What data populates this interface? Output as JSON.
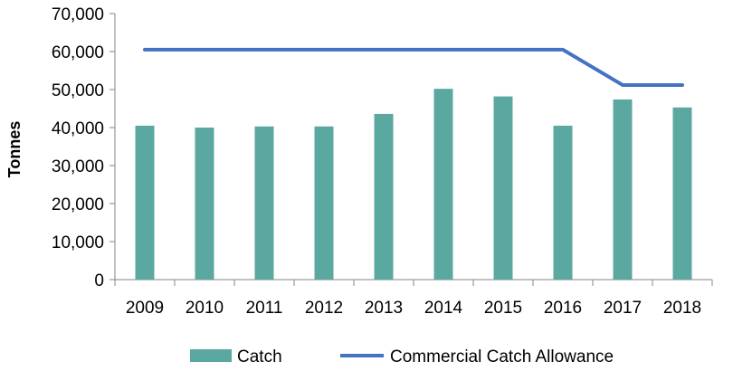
{
  "chart_data": {
    "type": "bar",
    "title": "",
    "xlabel": "",
    "ylabel": "Tonnes",
    "categories": [
      "2009",
      "2010",
      "2011",
      "2012",
      "2013",
      "2014",
      "2015",
      "2016",
      "2017",
      "2018"
    ],
    "ylim": [
      0,
      70000
    ],
    "yticks": [
      0,
      10000,
      20000,
      30000,
      40000,
      50000,
      60000,
      70000
    ],
    "ytick_labels": [
      "0",
      "10,000",
      "20,000",
      "30,000",
      "40,000",
      "50,000",
      "60,000",
      "70,000"
    ],
    "grid": false,
    "legend_position": "bottom",
    "series": [
      {
        "name": "Catch",
        "type": "bar",
        "color": "#5BA8A0",
        "values": [
          40500,
          40000,
          40300,
          40300,
          43600,
          50200,
          48200,
          40500,
          47400,
          45300
        ]
      },
      {
        "name": "Commercial Catch Allowance",
        "type": "line",
        "color": "#4472C4",
        "values": [
          60500,
          60500,
          60500,
          60500,
          60500,
          60500,
          60500,
          60500,
          51200,
          51200
        ]
      }
    ]
  }
}
